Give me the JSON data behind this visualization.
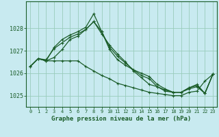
{
  "title": "Graphe pression niveau de la mer (hPa)",
  "background_color": "#c8eaf0",
  "grid_color": "#99ccbb",
  "line_color": "#1a5c28",
  "xlim": [
    -0.5,
    23.5
  ],
  "ylim": [
    1024.5,
    1029.2
  ],
  "yticks": [
    1025,
    1026,
    1027,
    1028
  ],
  "xticks": [
    0,
    1,
    2,
    3,
    4,
    5,
    6,
    7,
    8,
    9,
    10,
    11,
    12,
    13,
    14,
    15,
    16,
    17,
    18,
    19,
    20,
    21,
    22,
    23
  ],
  "series": [
    [
      1026.3,
      1026.65,
      1026.55,
      1026.55,
      1026.55,
      1026.55,
      1026.55,
      1026.3,
      1026.1,
      1025.9,
      1025.75,
      1025.55,
      1025.45,
      1025.35,
      1025.25,
      1025.15,
      1025.1,
      1025.05,
      1025.0,
      1025.0,
      1025.15,
      1025.2,
      1025.65,
      1025.95
    ],
    [
      1026.3,
      1026.65,
      1026.55,
      1026.7,
      1027.05,
      1027.5,
      1027.65,
      1027.95,
      1028.3,
      1027.75,
      1027.25,
      1026.85,
      1026.5,
      1026.1,
      1025.8,
      1025.5,
      1025.4,
      1025.2,
      1025.15,
      1025.15,
      1025.35,
      1025.45,
      1025.1,
      1025.95
    ],
    [
      1026.3,
      1026.65,
      1026.55,
      1027.15,
      1027.5,
      1027.7,
      1027.85,
      1028.05,
      1028.65,
      1027.85,
      1027.05,
      1026.6,
      1026.35,
      1026.15,
      1025.9,
      1025.75,
      1025.4,
      1025.25,
      1025.15,
      1025.15,
      1025.3,
      1025.4,
      1025.1,
      1025.95
    ],
    [
      1026.3,
      1026.65,
      1026.6,
      1027.1,
      1027.35,
      1027.6,
      1027.75,
      1027.95,
      1028.3,
      1027.85,
      1027.15,
      1026.75,
      1026.45,
      1026.15,
      1026.0,
      1025.85,
      1025.5,
      1025.3,
      1025.15,
      1025.15,
      1025.35,
      1025.5,
      1025.1,
      1025.95
    ]
  ]
}
